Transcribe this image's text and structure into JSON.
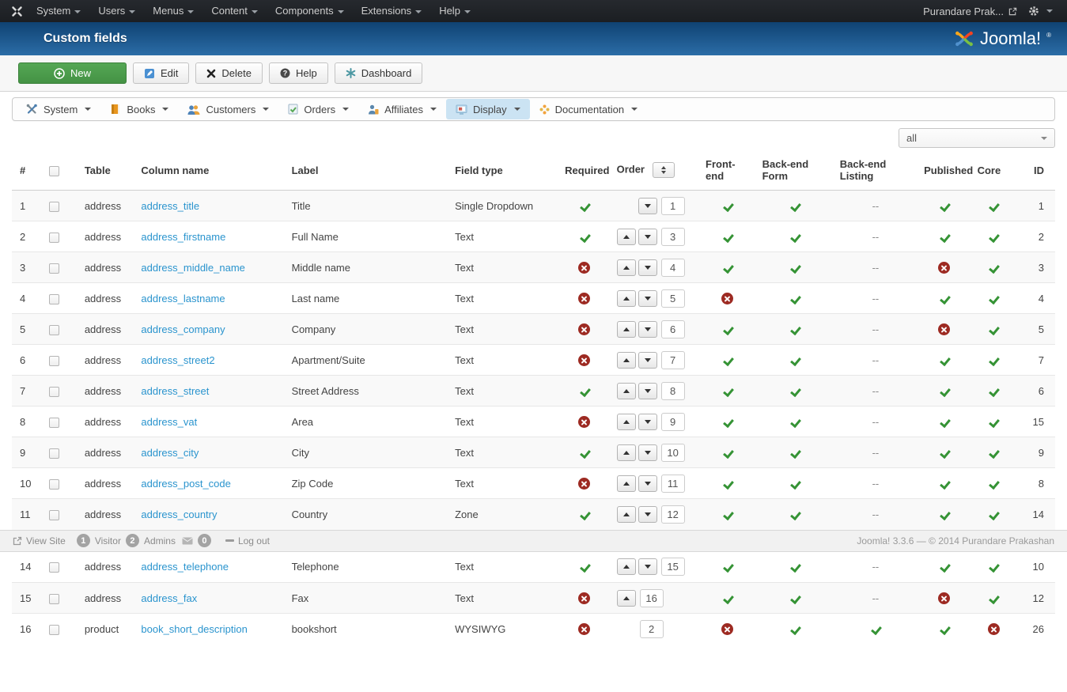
{
  "topbar": {
    "menus": [
      "System",
      "Users",
      "Menus",
      "Content",
      "Components",
      "Extensions",
      "Help"
    ],
    "user_label": "Purandare Prak..."
  },
  "header": {
    "title": "Custom fields",
    "logo_text": "Joomla!",
    "logo_reg": "®"
  },
  "toolbar": {
    "buttons": [
      {
        "label": "New",
        "icon": "plus",
        "variant": "success"
      },
      {
        "label": "Edit",
        "icon": "edit",
        "variant": "default"
      },
      {
        "label": "Delete",
        "icon": "delete",
        "variant": "default"
      },
      {
        "label": "Help",
        "icon": "help",
        "variant": "default"
      },
      {
        "label": "Dashboard",
        "icon": "dashboard",
        "variant": "default"
      }
    ]
  },
  "component_nav": {
    "items": [
      {
        "label": "System",
        "icon": "tools",
        "active": false
      },
      {
        "label": "Books",
        "icon": "book",
        "active": false
      },
      {
        "label": "Customers",
        "icon": "customers",
        "active": false
      },
      {
        "label": "Orders",
        "icon": "orders",
        "active": false
      },
      {
        "label": "Affiliates",
        "icon": "affiliates",
        "active": false
      },
      {
        "label": "Display",
        "icon": "display",
        "active": true
      },
      {
        "label": "Documentation",
        "icon": "docs",
        "active": false
      }
    ]
  },
  "filter": {
    "selected": "all"
  },
  "table": {
    "none_label": "--",
    "columns": [
      "#",
      "Table",
      "Column name",
      "Label",
      "Field type",
      "Required",
      "Order",
      "Front-end",
      "Back-end Form",
      "Back-end Listing",
      "Published",
      "Core",
      "ID"
    ],
    "rows_top": [
      {
        "num": "1",
        "table": "address",
        "column": "address_title",
        "label": "Title",
        "type": "Single Dropdown",
        "required": "yes",
        "up": false,
        "down": true,
        "order": "1",
        "front": "yes",
        "beform": "yes",
        "belist": "none",
        "published": "yes",
        "core": "yes",
        "id": "1"
      },
      {
        "num": "2",
        "table": "address",
        "column": "address_firstname",
        "label": "Full Name",
        "type": "Text",
        "required": "yes",
        "up": true,
        "down": true,
        "order": "3",
        "front": "yes",
        "beform": "yes",
        "belist": "none",
        "published": "yes",
        "core": "yes",
        "id": "2"
      },
      {
        "num": "3",
        "table": "address",
        "column": "address_middle_name",
        "label": "Middle name",
        "type": "Text",
        "required": "no",
        "up": true,
        "down": true,
        "order": "4",
        "front": "yes",
        "beform": "yes",
        "belist": "none",
        "published": "no",
        "core": "yes",
        "id": "3"
      },
      {
        "num": "4",
        "table": "address",
        "column": "address_lastname",
        "label": "Last name",
        "type": "Text",
        "required": "no",
        "up": true,
        "down": true,
        "order": "5",
        "front": "no",
        "beform": "yes",
        "belist": "none",
        "published": "yes",
        "core": "yes",
        "id": "4"
      },
      {
        "num": "5",
        "table": "address",
        "column": "address_company",
        "label": "Company",
        "type": "Text",
        "required": "no",
        "up": true,
        "down": true,
        "order": "6",
        "front": "yes",
        "beform": "yes",
        "belist": "none",
        "published": "no",
        "core": "yes",
        "id": "5"
      },
      {
        "num": "6",
        "table": "address",
        "column": "address_street2",
        "label": "Apartment/Suite",
        "type": "Text",
        "required": "no",
        "up": true,
        "down": true,
        "order": "7",
        "front": "yes",
        "beform": "yes",
        "belist": "none",
        "published": "yes",
        "core": "yes",
        "id": "7"
      },
      {
        "num": "7",
        "table": "address",
        "column": "address_street",
        "label": "Street Address",
        "type": "Text",
        "required": "yes",
        "up": true,
        "down": true,
        "order": "8",
        "front": "yes",
        "beform": "yes",
        "belist": "none",
        "published": "yes",
        "core": "yes",
        "id": "6"
      },
      {
        "num": "8",
        "table": "address",
        "column": "address_vat",
        "label": "Area",
        "type": "Text",
        "required": "no",
        "up": true,
        "down": true,
        "order": "9",
        "front": "yes",
        "beform": "yes",
        "belist": "none",
        "published": "yes",
        "core": "yes",
        "id": "15"
      },
      {
        "num": "9",
        "table": "address",
        "column": "address_city",
        "label": "City",
        "type": "Text",
        "required": "yes",
        "up": true,
        "down": true,
        "order": "10",
        "front": "yes",
        "beform": "yes",
        "belist": "none",
        "published": "yes",
        "core": "yes",
        "id": "9"
      },
      {
        "num": "10",
        "table": "address",
        "column": "address_post_code",
        "label": "Zip Code",
        "type": "Text",
        "required": "no",
        "up": true,
        "down": true,
        "order": "11",
        "front": "yes",
        "beform": "yes",
        "belist": "none",
        "published": "yes",
        "core": "yes",
        "id": "8"
      },
      {
        "num": "11",
        "table": "address",
        "column": "address_country",
        "label": "Country",
        "type": "Zone",
        "required": "yes",
        "up": true,
        "down": true,
        "order": "12",
        "front": "yes",
        "beform": "yes",
        "belist": "none",
        "published": "yes",
        "core": "yes",
        "id": "14"
      }
    ],
    "rows_bottom": [
      {
        "num": "14",
        "table": "address",
        "column": "address_telephone",
        "label": "Telephone",
        "type": "Text",
        "required": "yes",
        "up": true,
        "down": true,
        "order": "15",
        "front": "yes",
        "beform": "yes",
        "belist": "none",
        "published": "yes",
        "core": "yes",
        "id": "10"
      },
      {
        "num": "15",
        "table": "address",
        "column": "address_fax",
        "label": "Fax",
        "type": "Text",
        "required": "no",
        "up": true,
        "down": false,
        "order": "16",
        "front": "yes",
        "beform": "yes",
        "belist": "none",
        "published": "no",
        "core": "yes",
        "id": "12"
      },
      {
        "num": "16",
        "table": "product",
        "column": "book_short_description",
        "label": "bookshort",
        "type": "WYSIWYG",
        "required": "no",
        "up": false,
        "down": false,
        "order": "2",
        "front": "no",
        "beform": "yes",
        "belist": "yes",
        "published": "yes",
        "core": "no",
        "id": "26"
      }
    ]
  },
  "statusbar": {
    "view_site": "View Site",
    "visitor_count": "1",
    "visitor_label": "Visitor",
    "admin_count": "2",
    "admin_label": "Admins",
    "message_count": "0",
    "logout": "Log out",
    "credit": "Joomla! 3.3.6  —  © 2014 Purandare Prakashan"
  }
}
